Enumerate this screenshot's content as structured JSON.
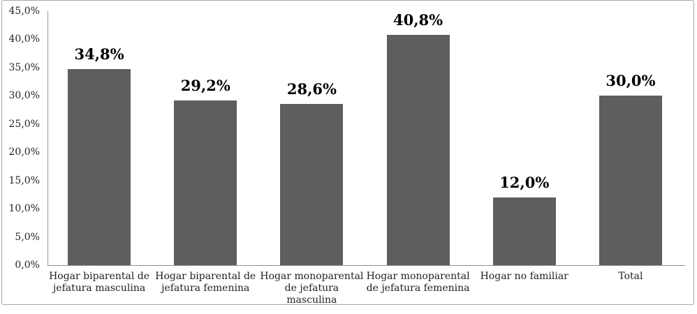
{
  "chart_data": {
    "type": "bar",
    "title": "",
    "xlabel": "",
    "ylabel": "",
    "categories": [
      "Hogar biparental de jefatura masculina",
      "Hogar biparental de jefatura femenina",
      "Hogar monoparental de jefatura masculina",
      "Hogar monoparental de jefatura femenina",
      "Hogar no familiar",
      "Total"
    ],
    "categories_display": [
      "Hogar biparental de\njefatura masculina",
      "Hogar biparental de\njefatura femenina",
      "Hogar monoparental\nde jefatura masculina",
      "Hogar monoparental\nde jefatura femenina",
      "Hogar no familiar",
      "Total"
    ],
    "values": [
      34.8,
      29.2,
      28.6,
      40.8,
      12.0,
      30.0
    ],
    "value_labels": [
      "34,8%",
      "29,2%",
      "28,6%",
      "40,8%",
      "12,0%",
      "30,0%"
    ],
    "ylim": [
      0,
      45
    ],
    "y_tick_values": [
      0,
      5,
      10,
      15,
      20,
      25,
      30,
      35,
      40,
      45
    ],
    "y_tick_labels": [
      "0,0%",
      "5,0%",
      "10,0%",
      "15,0%",
      "20,0%",
      "25,0%",
      "30,0%",
      "35,0%",
      "40,0%",
      "45,0%"
    ],
    "grid": "off",
    "legend": "none",
    "bar_color": "#5e5e5e",
    "axis_color": "#9b9b9b",
    "frame_border_color": "#a9a9a9"
  }
}
